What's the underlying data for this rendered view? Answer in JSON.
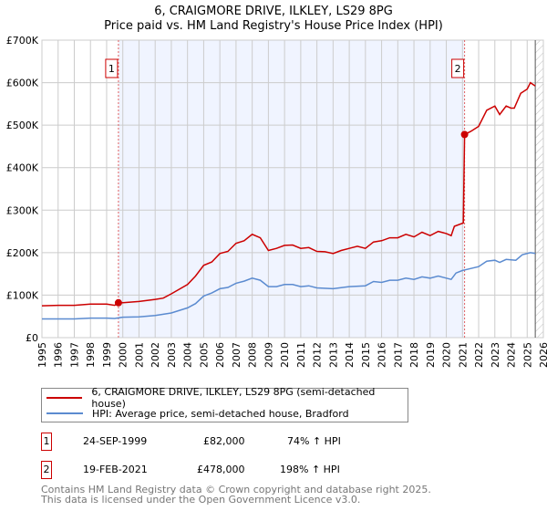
{
  "title": "6, CRAIGMORE DRIVE, ILKLEY, LS29 8PG",
  "subtitle": "Price paid vs. HM Land Registry's House Price Index (HPI)",
  "colors": {
    "property": "#cc0000",
    "hpi": "#5b8bd0",
    "shade": "#f0f4ff"
  },
  "chart_data": {
    "type": "line",
    "xlim": [
      1995,
      2026
    ],
    "ylim": [
      0,
      700000
    ],
    "y_ticks": [
      {
        "v": 0,
        "label": "£0"
      },
      {
        "v": 100000,
        "label": "£100K"
      },
      {
        "v": 200000,
        "label": "£200K"
      },
      {
        "v": 300000,
        "label": "£300K"
      },
      {
        "v": 400000,
        "label": "£400K"
      },
      {
        "v": 500000,
        "label": "£500K"
      },
      {
        "v": 600000,
        "label": "£600K"
      },
      {
        "v": 700000,
        "label": "£700K"
      }
    ],
    "x_ticks": [
      "1995",
      "1996",
      "1997",
      "1998",
      "1999",
      "2000",
      "2001",
      "2002",
      "2003",
      "2004",
      "2005",
      "2006",
      "2007",
      "2008",
      "2009",
      "2010",
      "2011",
      "2012",
      "2013",
      "2014",
      "2015",
      "2016",
      "2017",
      "2018",
      "2019",
      "2020",
      "2021",
      "2022",
      "2023",
      "2024",
      "2025",
      "2026"
    ],
    "grid": true,
    "shaded_range": [
      1999.73,
      2021.13
    ],
    "future_hatch_from": 2025.5,
    "series": [
      {
        "name": "6, CRAIGMORE DRIVE, ILKLEY, LS29 8PG (semi-detached house)",
        "color": "#cc0000",
        "x": [
          1995,
          1996,
          1997,
          1998,
          1999,
          1999.5,
          1999.73,
          2000,
          2001,
          2002,
          2002.5,
          2003,
          2004,
          2004.5,
          2005,
          2005.5,
          2006,
          2006.5,
          2007,
          2007.5,
          2008,
          2008.5,
          2009,
          2009.5,
          2010,
          2010.5,
          2011,
          2011.5,
          2012,
          2012.5,
          2013,
          2013.5,
          2014,
          2014.5,
          2015,
          2015.5,
          2016,
          2016.5,
          2017,
          2017.5,
          2018,
          2018.5,
          2019,
          2019.5,
          2020,
          2020.3,
          2020.5,
          2021.05,
          2021.13,
          2021.5,
          2022,
          2022.5,
          2023,
          2023.3,
          2023.7,
          2024,
          2024.2,
          2024.6,
          2025,
          2025.2,
          2025.5
        ],
        "y": [
          75000,
          76000,
          76000,
          79000,
          79000,
          76000,
          82000,
          82000,
          85000,
          90000,
          93000,
          103000,
          125000,
          145000,
          170000,
          178000,
          198000,
          203000,
          222000,
          228000,
          243000,
          235000,
          205000,
          210000,
          217000,
          218000,
          210000,
          212000,
          203000,
          202000,
          198000,
          205000,
          210000,
          215000,
          210000,
          225000,
          228000,
          235000,
          235000,
          243000,
          237000,
          248000,
          240000,
          250000,
          245000,
          240000,
          262000,
          270000,
          478000,
          485000,
          497000,
          535000,
          545000,
          525000,
          545000,
          540000,
          540000,
          575000,
          585000,
          600000,
          592000
        ]
      },
      {
        "name": "HPI: Average price, semi-detached house, Bradford",
        "color": "#5b8bd0",
        "x": [
          1995,
          1997,
          1998,
          1999,
          1999.5,
          2000,
          2001,
          2002,
          2003,
          2004,
          2004.5,
          2005,
          2005.5,
          2006,
          2006.5,
          2007,
          2007.5,
          2008,
          2008.5,
          2009,
          2009.5,
          2010,
          2010.5,
          2011,
          2011.5,
          2012,
          2013,
          2014,
          2015,
          2015.5,
          2016,
          2016.5,
          2017,
          2017.5,
          2018,
          2018.5,
          2019,
          2019.5,
          2020,
          2020.3,
          2020.6,
          2021,
          2022,
          2022.5,
          2023,
          2023.3,
          2023.7,
          2024,
          2024.3,
          2024.7,
          2025.2,
          2025.5
        ],
        "y": [
          44000,
          44000,
          46000,
          46000,
          45000,
          48000,
          49000,
          52000,
          58000,
          70000,
          80000,
          98000,
          105000,
          115000,
          118000,
          128000,
          133000,
          140000,
          135000,
          120000,
          120000,
          125000,
          125000,
          120000,
          122000,
          117000,
          115000,
          120000,
          122000,
          132000,
          130000,
          135000,
          135000,
          140000,
          137000,
          143000,
          140000,
          145000,
          140000,
          137000,
          152000,
          158000,
          167000,
          180000,
          182000,
          177000,
          184000,
          183000,
          182000,
          195000,
          200000,
          198000
        ]
      }
    ],
    "annotations": [
      {
        "label": "1",
        "x": 1999.73,
        "y": 82000
      },
      {
        "label": "2",
        "x": 2021.13,
        "y": 478000
      }
    ]
  },
  "legend": [
    {
      "label": "6, CRAIGMORE DRIVE, ILKLEY, LS29 8PG (semi-detached house)"
    },
    {
      "label": "HPI: Average price, semi-detached house, Bradford"
    }
  ],
  "transactions": [
    {
      "num": "1",
      "date": "24-SEP-1999",
      "price": "£82,000",
      "hpi": "74% ↑ HPI"
    },
    {
      "num": "2",
      "date": "19-FEB-2021",
      "price": "£478,000",
      "hpi": "198% ↑ HPI"
    }
  ],
  "footer": [
    "Contains HM Land Registry data © Crown copyright and database right 2025.",
    "This data is licensed under the Open Government Licence v3.0."
  ]
}
